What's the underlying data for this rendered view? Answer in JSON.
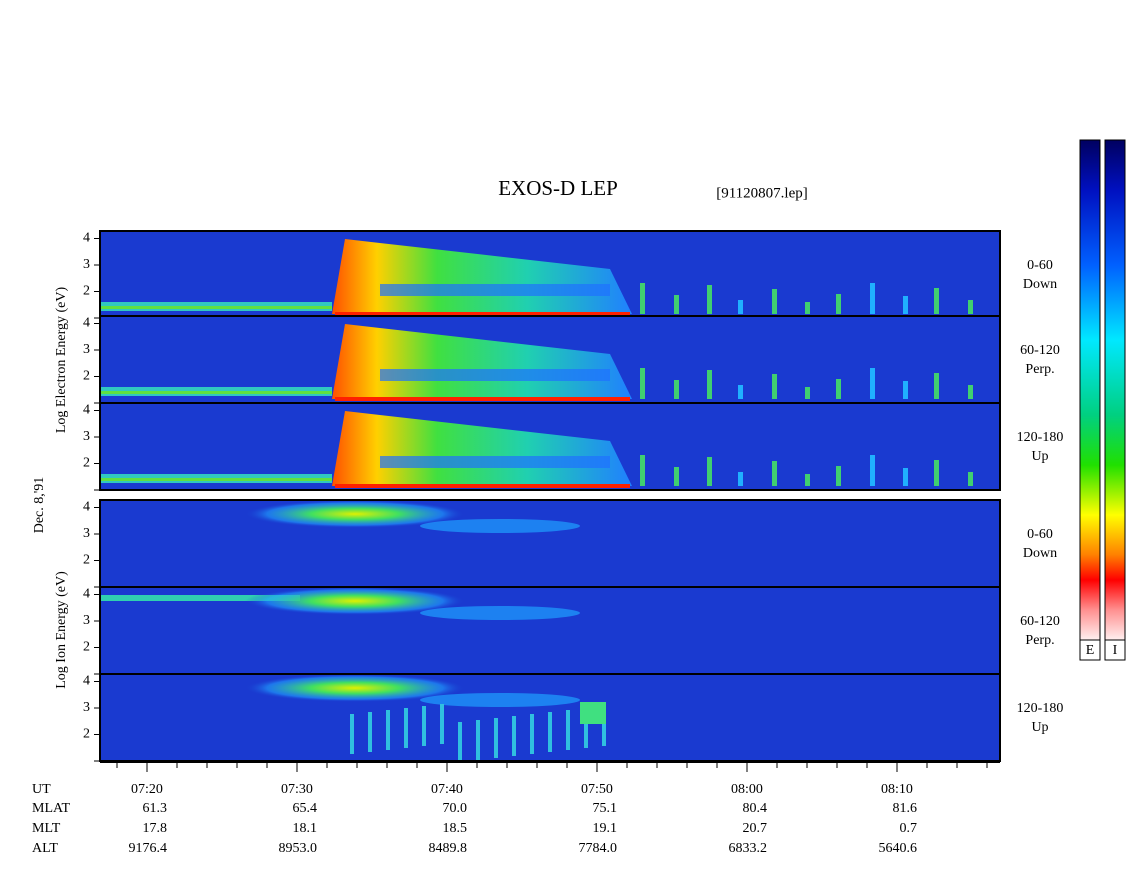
{
  "title": "EXOS-D LEP",
  "file": "[91120807.lep]",
  "date": "Dec. 8,'91",
  "electron_label": "Log Electron Energy (eV)",
  "ion_label": "Log Ion Energy (eV)",
  "panel_ticks": [
    2,
    3,
    4
  ],
  "panels": [
    {
      "angle": "0-60",
      "direction": "Down"
    },
    {
      "angle": "60-120",
      "direction": "Perp."
    },
    {
      "angle": "120-180",
      "direction": "Up"
    }
  ],
  "colorbars": [
    "E",
    "I"
  ],
  "table": {
    "rows": [
      {
        "label": "UT",
        "values": [
          "07:20",
          "07:30",
          "07:40",
          "07:50",
          "08:00",
          "08:10"
        ]
      },
      {
        "label": "MLAT",
        "values": [
          "61.3",
          "65.4",
          "70.0",
          "75.1",
          "80.4",
          "81.6"
        ]
      },
      {
        "label": "MLT",
        "values": [
          "17.8",
          "18.1",
          "18.5",
          "19.1",
          "20.7",
          "0.7"
        ]
      },
      {
        "label": "ALT",
        "values": [
          "9176.4",
          "8953.0",
          "8489.8",
          "7784.0",
          "6833.2",
          "5640.6"
        ]
      }
    ]
  }
}
